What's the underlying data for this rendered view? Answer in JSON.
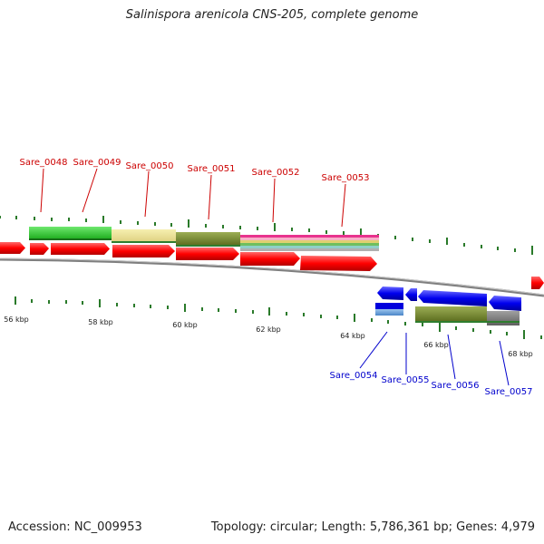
{
  "title": "Salinispora arenicola CNS-205, complete genome",
  "footer": {
    "accession": "Accession: NC_009953",
    "summary": "Topology: circular; Length: 5,786,361 bp; Genes: 4,979"
  },
  "scale_labels": [
    "56 kbp",
    "58 kbp",
    "60 kbp",
    "62 kbp",
    "64 kbp",
    "66 kbp",
    "68 kbp"
  ],
  "gene_labels": {
    "forward": [
      "Sare_0048",
      "Sare_0049",
      "Sare_0050",
      "Sare_0051",
      "Sare_0052",
      "Sare_0053"
    ],
    "reverse": [
      "Sare_0054",
      "Sare_0055",
      "Sare_0056",
      "Sare_0057"
    ]
  },
  "colors": {
    "forward_strand": "#ff0000",
    "reverse_strand": "#0000e0",
    "forward_label": "#cc0000",
    "reverse_label": "#0000cc",
    "tick": "#2a7a2a",
    "backbone": "#7f7f7f"
  }
}
